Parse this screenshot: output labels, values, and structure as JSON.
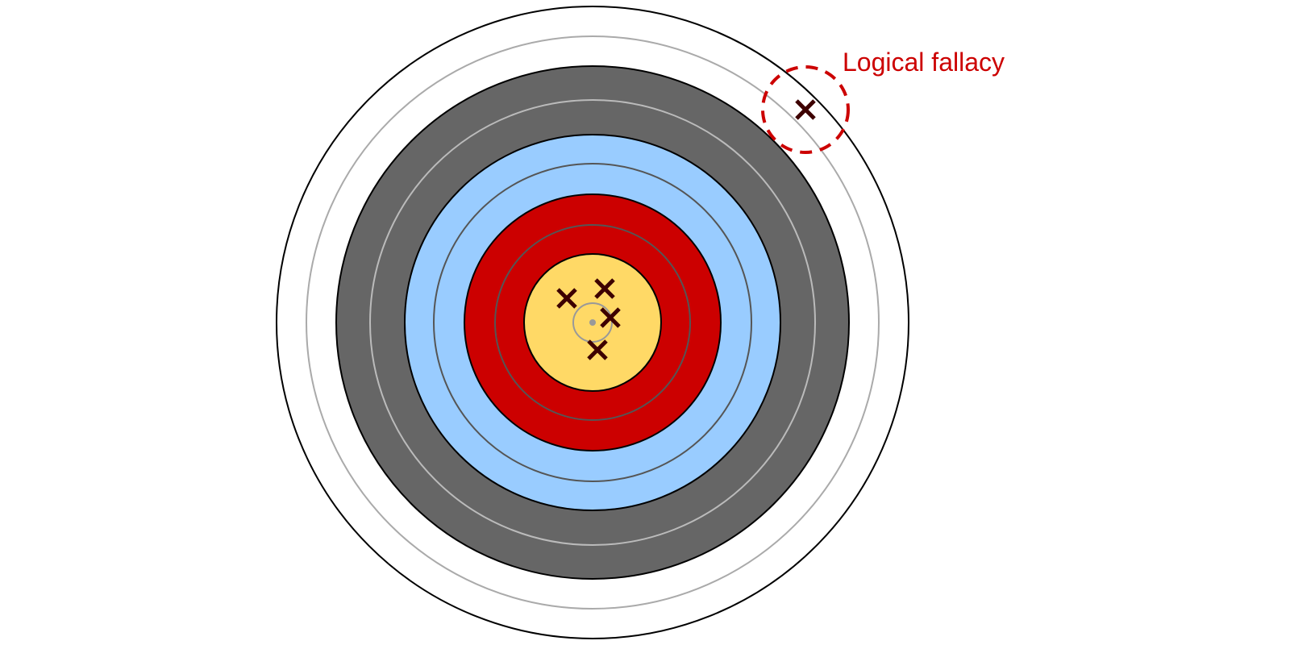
{
  "annotation": {
    "label": "Logical fallacy"
  },
  "colors": {
    "background": "#ffffff",
    "outer_white": "#ffffff",
    "black_ring": "#666666",
    "blue_ring": "#99ccff",
    "red_ring": "#cc0000",
    "gold_ring": "#ffd966",
    "ring_outline": "#000000",
    "inner_line_light": "#aaaaaa",
    "inner_line_on_black": "#bbbbbb",
    "inner_line_on_blue": "#555555",
    "inner_line_on_red": "#555555",
    "center_mark": "#999999",
    "hit_mark": "#3d0000",
    "annotation": "#cc0000"
  },
  "target": {
    "zones": [
      {
        "name": "white",
        "color_key": "outer_white"
      },
      {
        "name": "black",
        "color_key": "black_ring"
      },
      {
        "name": "blue",
        "color_key": "blue_ring"
      },
      {
        "name": "red",
        "color_key": "red_ring"
      },
      {
        "name": "gold",
        "color_key": "gold_ring"
      }
    ]
  },
  "marks": {
    "hit_icon": "x-mark",
    "hits_total": 5,
    "hits_in_gold": 4,
    "hits_outlier": 1
  }
}
